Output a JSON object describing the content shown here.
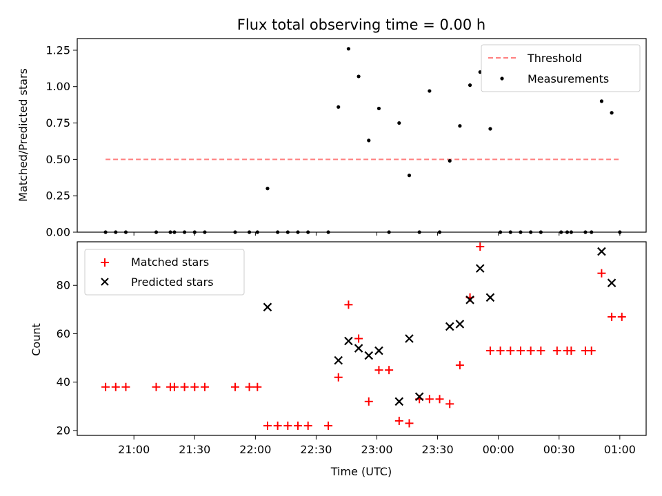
{
  "chart_data": [
    {
      "type": "scatter",
      "title": "Flux total observing time = 0.00 h",
      "ylabel": "Matched/Predicted stars",
      "ylim": [
        0.0,
        1.33
      ],
      "yticks": [
        0.0,
        0.25,
        0.5,
        0.75,
        1.0,
        1.25
      ],
      "ytick_labels": [
        "0.00",
        "0.25",
        "0.50",
        "0.75",
        "1.00",
        "1.25"
      ],
      "x_is_time": true,
      "legend_position": "top-right",
      "threshold": {
        "name": "Threshold",
        "value": 0.5,
        "x_start": "20:46",
        "x_end": "01:00",
        "color": "#ff7f7f",
        "style": "dashed"
      },
      "series": [
        {
          "name": "Measurements",
          "color": "#000000",
          "marker": "dot",
          "points": [
            [
              "20:46",
              0.0
            ],
            [
              "20:51",
              0.0
            ],
            [
              "20:56",
              0.0
            ],
            [
              "21:11",
              0.0
            ],
            [
              "21:18",
              0.0
            ],
            [
              "21:20",
              0.0
            ],
            [
              "21:25",
              0.0
            ],
            [
              "21:30",
              0.0
            ],
            [
              "21:35",
              0.0
            ],
            [
              "21:50",
              0.0
            ],
            [
              "21:57",
              0.0
            ],
            [
              "22:01",
              0.0
            ],
            [
              "22:06",
              0.3
            ],
            [
              "22:11",
              0.0
            ],
            [
              "22:16",
              0.0
            ],
            [
              "22:21",
              0.0
            ],
            [
              "22:26",
              0.0
            ],
            [
              "22:36",
              0.0
            ],
            [
              "22:41",
              0.86
            ],
            [
              "22:46",
              1.26
            ],
            [
              "22:51",
              1.07
            ],
            [
              "22:56",
              0.63
            ],
            [
              "23:01",
              0.85
            ],
            [
              "23:06",
              0.0
            ],
            [
              "23:11",
              0.75
            ],
            [
              "23:16",
              0.39
            ],
            [
              "23:21",
              0.0
            ],
            [
              "23:26",
              0.97
            ],
            [
              "23:31",
              0.0
            ],
            [
              "23:36",
              0.49
            ],
            [
              "23:41",
              0.73
            ],
            [
              "23:46",
              1.01
            ],
            [
              "23:51",
              1.1
            ],
            [
              "23:56",
              0.71
            ],
            [
              "00:01",
              0.0
            ],
            [
              "00:06",
              0.0
            ],
            [
              "00:11",
              0.0
            ],
            [
              "00:16",
              0.0
            ],
            [
              "00:21",
              0.0
            ],
            [
              "00:31",
              0.0
            ],
            [
              "00:34",
              0.0
            ],
            [
              "00:36",
              0.0
            ],
            [
              "00:43",
              0.0
            ],
            [
              "00:46",
              0.0
            ],
            [
              "00:51",
              0.9
            ],
            [
              "00:56",
              0.82
            ],
            [
              "01:00",
              0.0
            ]
          ]
        }
      ]
    },
    {
      "type": "scatter",
      "xlabel": "Time (UTC)",
      "ylabel": "Count",
      "ylim": [
        18,
        98
      ],
      "yticks": [
        20,
        40,
        60,
        80
      ],
      "ytick_labels": [
        "20",
        "40",
        "60",
        "80"
      ],
      "xticks": [
        "21:00",
        "21:30",
        "22:00",
        "22:30",
        "23:00",
        "23:30",
        "00:00",
        "00:30",
        "01:00"
      ],
      "xlim": [
        "20:32",
        "01:13"
      ],
      "x_is_time": true,
      "legend_position": "top-left",
      "series": [
        {
          "name": "Matched stars",
          "color": "#ff0000",
          "marker": "plus",
          "points": [
            [
              "20:46",
              38
            ],
            [
              "20:51",
              38
            ],
            [
              "20:56",
              38
            ],
            [
              "21:11",
              38
            ],
            [
              "21:18",
              38
            ],
            [
              "21:20",
              38
            ],
            [
              "21:25",
              38
            ],
            [
              "21:30",
              38
            ],
            [
              "21:35",
              38
            ],
            [
              "21:50",
              38
            ],
            [
              "21:57",
              38
            ],
            [
              "22:01",
              38
            ],
            [
              "22:06",
              22
            ],
            [
              "22:11",
              22
            ],
            [
              "22:16",
              22
            ],
            [
              "22:21",
              22
            ],
            [
              "22:26",
              22
            ],
            [
              "22:36",
              22
            ],
            [
              "22:41",
              42
            ],
            [
              "22:46",
              72
            ],
            [
              "22:51",
              58
            ],
            [
              "22:56",
              32
            ],
            [
              "23:01",
              45
            ],
            [
              "23:06",
              45
            ],
            [
              "23:11",
              24
            ],
            [
              "23:16",
              23
            ],
            [
              "23:21",
              33
            ],
            [
              "23:26",
              33
            ],
            [
              "23:31",
              33
            ],
            [
              "23:36",
              31
            ],
            [
              "23:41",
              47
            ],
            [
              "23:46",
              75
            ],
            [
              "23:51",
              96
            ],
            [
              "23:56",
              53
            ],
            [
              "00:01",
              53
            ],
            [
              "00:06",
              53
            ],
            [
              "00:11",
              53
            ],
            [
              "00:16",
              53
            ],
            [
              "00:21",
              53
            ],
            [
              "00:29",
              53
            ],
            [
              "00:34",
              53
            ],
            [
              "00:36",
              53
            ],
            [
              "00:43",
              53
            ],
            [
              "00:46",
              53
            ],
            [
              "00:51",
              85
            ],
            [
              "00:56",
              67
            ],
            [
              "01:01",
              67
            ]
          ]
        },
        {
          "name": "Predicted stars",
          "color": "#000000",
          "marker": "x",
          "points": [
            [
              "22:06",
              71
            ],
            [
              "22:41",
              49
            ],
            [
              "22:46",
              57
            ],
            [
              "22:51",
              54
            ],
            [
              "22:56",
              51
            ],
            [
              "23:01",
              53
            ],
            [
              "23:11",
              32
            ],
            [
              "23:16",
              58
            ],
            [
              "23:21",
              34
            ],
            [
              "23:36",
              63
            ],
            [
              "23:41",
              64
            ],
            [
              "23:46",
              74
            ],
            [
              "23:51",
              87
            ],
            [
              "23:56",
              75
            ],
            [
              "00:51",
              94
            ],
            [
              "00:56",
              81
            ]
          ]
        }
      ]
    }
  ]
}
